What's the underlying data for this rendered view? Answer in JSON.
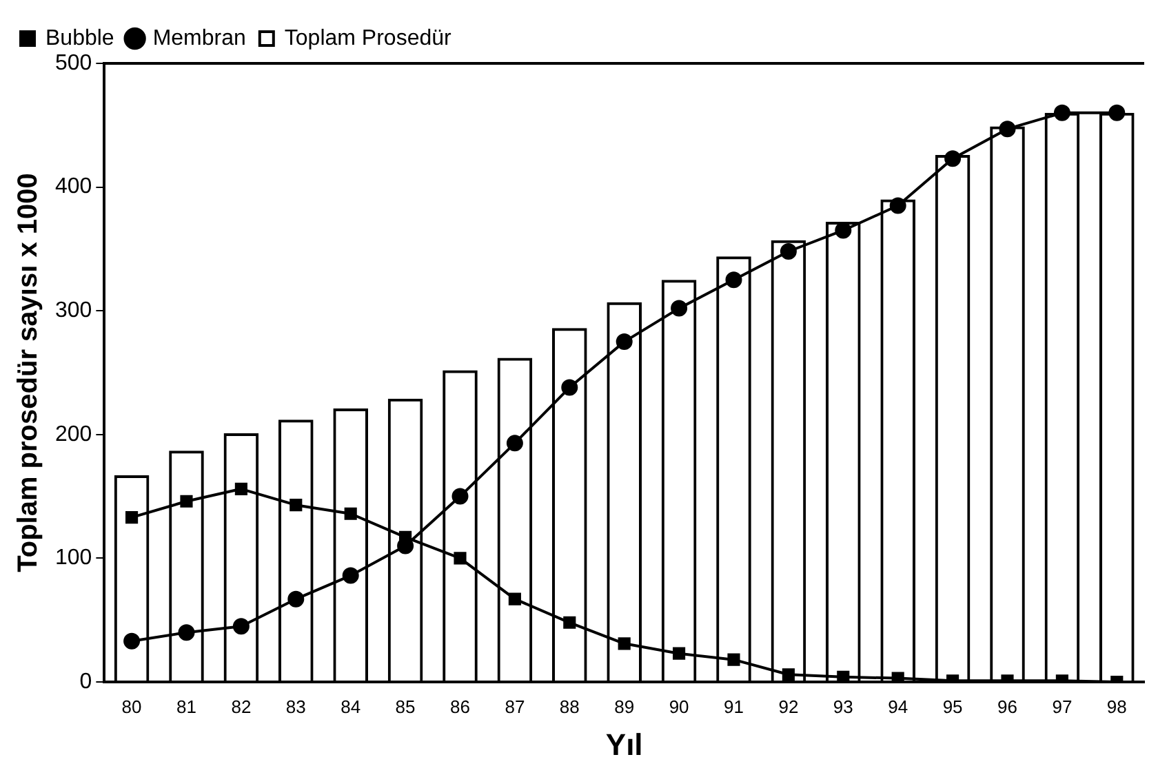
{
  "chart_data": {
    "type": "bar",
    "xlabel": "Yıl",
    "ylabel": "Toplam prosedür sayısı x 1000",
    "categories": [
      "80",
      "81",
      "82",
      "83",
      "84",
      "85",
      "86",
      "87",
      "88",
      "89",
      "90",
      "91",
      "92",
      "93",
      "94",
      "95",
      "96",
      "97",
      "98"
    ],
    "series": [
      {
        "name": "Bubble",
        "type": "line",
        "color": "#000000",
        "marker": "square",
        "values": [
          133,
          146,
          156,
          143,
          136,
          117,
          100,
          67,
          48,
          31,
          23,
          18,
          6,
          4,
          3,
          1,
          1,
          1,
          0
        ]
      },
      {
        "name": "Membran",
        "type": "line",
        "color": "#000000",
        "marker": "circle",
        "values": [
          33,
          40,
          45,
          67,
          86,
          110,
          150,
          193,
          238,
          275,
          302,
          325,
          348,
          365,
          385,
          423,
          447,
          460,
          460
        ]
      },
      {
        "name": "Toplam Prosedür",
        "type": "bar",
        "color": "#000000",
        "values": [
          167,
          187,
          201,
          212,
          221,
          229,
          252,
          262,
          286,
          307,
          325,
          344,
          357,
          372,
          390,
          426,
          449,
          460,
          460
        ]
      }
    ],
    "ylim": [
      0,
      500
    ],
    "yticks": [
      0,
      100,
      200,
      300,
      400,
      500
    ],
    "grid": false,
    "legend": "top left"
  }
}
